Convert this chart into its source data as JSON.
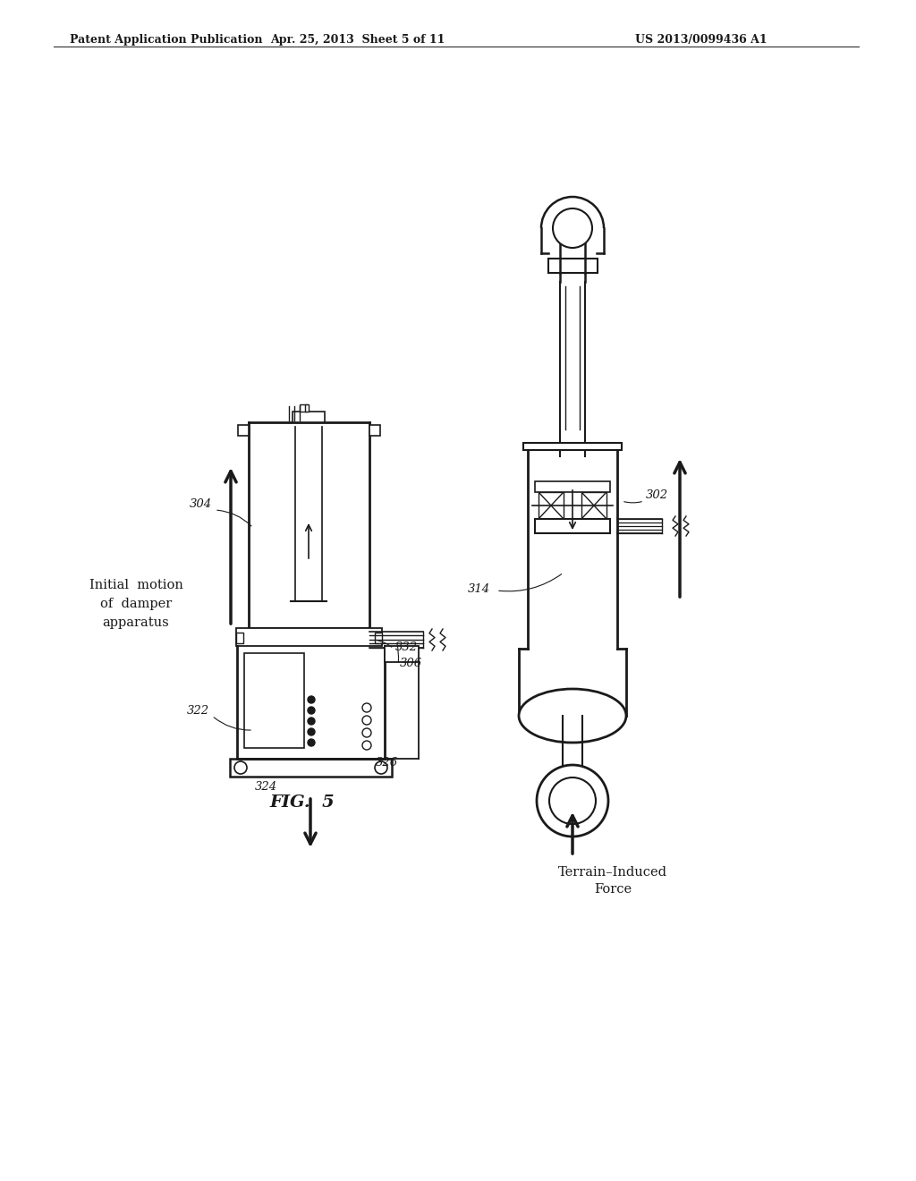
{
  "bg_color": "#ffffff",
  "line_color": "#1a1a1a",
  "header_left": "Patent Application Publication",
  "header_mid": "Apr. 25, 2013  Sheet 5 of 11",
  "header_right": "US 2013/0099436 A1",
  "fig_label": "FIG.  5",
  "label_304": "304",
  "label_332": "332",
  "label_306": "306",
  "label_322": "322",
  "label_326": "326",
  "label_324": "324",
  "label_302": "302",
  "label_314": "314",
  "text_initial_motion": "Initial  motion\nof  damper\napparatus",
  "text_terrain": "Terrain–Induced\nForce"
}
